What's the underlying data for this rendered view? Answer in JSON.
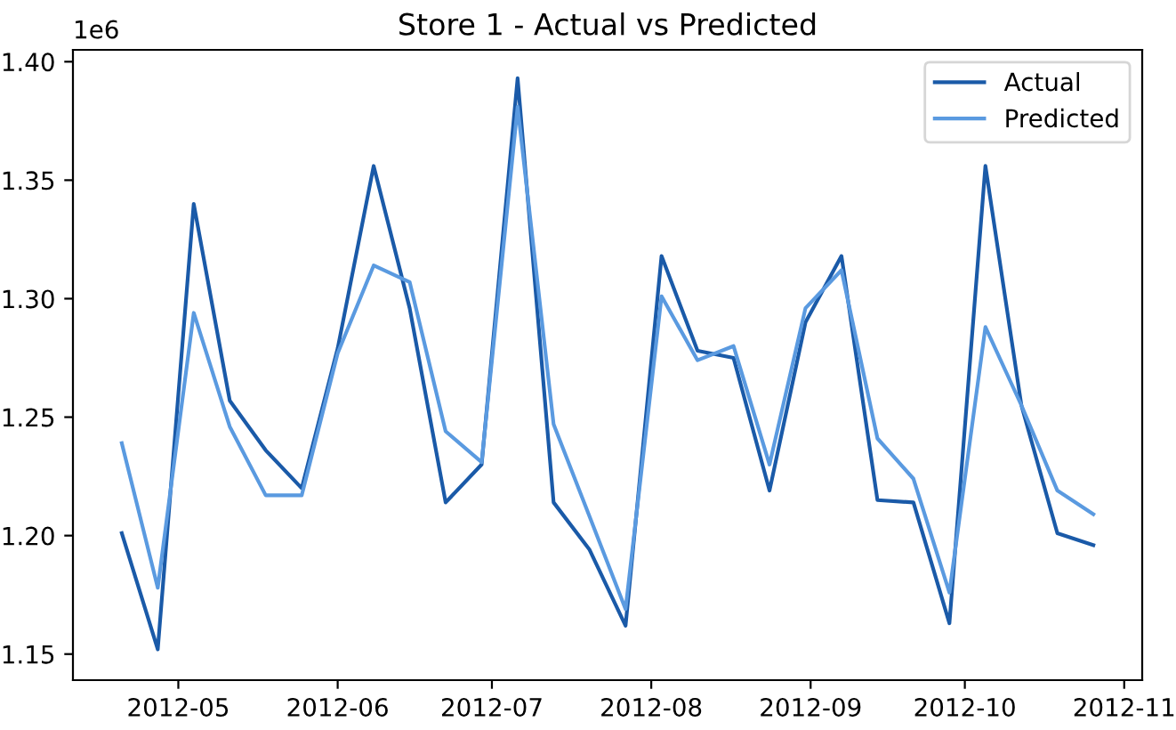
{
  "chart_data": {
    "type": "line",
    "title": "Store 1 - Actual vs Predicted",
    "x": [
      "2012-04-20",
      "2012-04-27",
      "2012-05-04",
      "2012-05-11",
      "2012-05-18",
      "2012-05-25",
      "2012-06-01",
      "2012-06-08",
      "2012-06-15",
      "2012-06-22",
      "2012-06-29",
      "2012-07-06",
      "2012-07-13",
      "2012-07-20",
      "2012-07-27",
      "2012-08-03",
      "2012-08-10",
      "2012-08-17",
      "2012-08-24",
      "2012-08-31",
      "2012-09-07",
      "2012-09-14",
      "2012-09-21",
      "2012-09-28",
      "2012-10-05",
      "2012-10-12",
      "2012-10-19",
      "2012-10-26"
    ],
    "series": [
      {
        "name": "Actual",
        "color": "#1a5aa8",
        "values": [
          1.201,
          1.152,
          1.34,
          1.257,
          1.236,
          1.22,
          1.279,
          1.356,
          1.296,
          1.214,
          1.23,
          1.393,
          1.214,
          1.194,
          1.162,
          1.318,
          1.278,
          1.275,
          1.219,
          1.29,
          1.318,
          1.215,
          1.214,
          1.163,
          1.356,
          1.255,
          1.201,
          1.196
        ]
      },
      {
        "name": "Predicted",
        "color": "#5a9ae0",
        "values": [
          1.239,
          1.178,
          1.294,
          1.246,
          1.217,
          1.217,
          1.277,
          1.314,
          1.307,
          1.244,
          1.231,
          1.381,
          1.247,
          1.208,
          1.169,
          1.301,
          1.274,
          1.28,
          1.23,
          1.296,
          1.312,
          1.241,
          1.224,
          1.176,
          1.288,
          1.255,
          1.219,
          1.209
        ]
      }
    ],
    "xlim": [
      "2012-04-10T12:00",
      "2012-11-04T12:00"
    ],
    "xticks": [
      {
        "value": "2012-05-01",
        "label": "2012-05"
      },
      {
        "value": "2012-06-01",
        "label": "2012-06"
      },
      {
        "value": "2012-07-01",
        "label": "2012-07"
      },
      {
        "value": "2012-08-01",
        "label": "2012-08"
      },
      {
        "value": "2012-09-01",
        "label": "2012-09"
      },
      {
        "value": "2012-10-01",
        "label": "2012-10"
      },
      {
        "value": "2012-11-01",
        "label": "2012-11"
      }
    ],
    "ylim": [
      1.139,
      1.405
    ],
    "yticks": [
      1.15,
      {
        "value": 1.2,
        "label": "1.20"
      },
      1.25,
      {
        "value": 1.3,
        "label": "1.30"
      },
      1.35,
      {
        "value": 1.4,
        "label": "1.40"
      }
    ],
    "annotations": [
      "1e6"
    ],
    "legend": "top right",
    "grid": false,
    "marker": "none",
    "line_style": "solid"
  }
}
